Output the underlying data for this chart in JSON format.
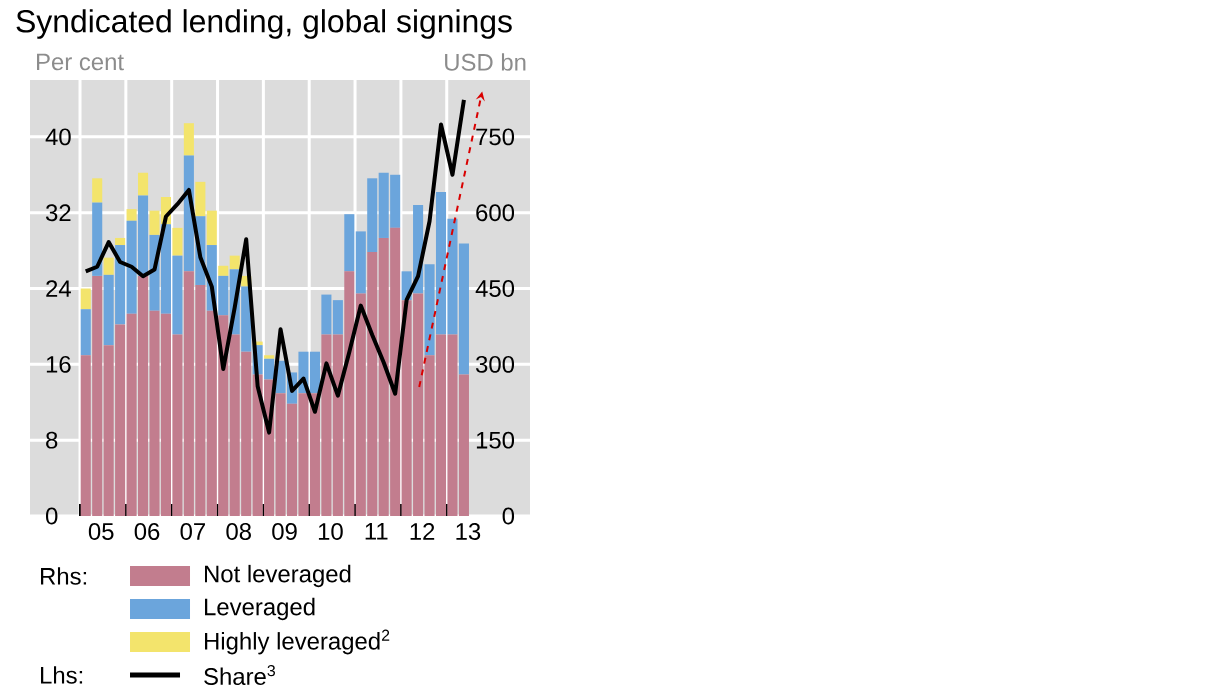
{
  "chart_data": {
    "type": "bar",
    "title": "Syndicated lending, global signings",
    "ylabel": "Per cent",
    "y2label": "USD bn",
    "categories": [
      null,
      "05",
      null,
      null,
      null,
      "06",
      null,
      null,
      null,
      "07",
      null,
      null,
      null,
      "08",
      null,
      null,
      null,
      "09",
      null,
      null,
      null,
      "10",
      null,
      null,
      null,
      "11",
      null,
      null,
      null,
      "12",
      null,
      null,
      null,
      "13"
    ],
    "stacked": true,
    "grid": true,
    "legend": "bottom",
    "ylim": [
      0,
      46
    ],
    "yticks": [
      0,
      8,
      16,
      24,
      32,
      40
    ],
    "y2lim": [
      0,
      862.5
    ],
    "y2ticks": [
      0,
      150,
      300,
      450,
      600,
      750
    ],
    "annotations": [
      "Rhs:",
      "Lhs:"
    ],
    "series": [
      {
        "name": "Not leveraged",
        "color": "#c27d8e",
        "axis": "y2",
        "values": [
          318,
          475,
          338,
          379,
          400,
          475,
          406,
          400,
          359,
          484,
          457,
          406,
          397,
          359,
          325,
          280,
          270,
          243,
          222,
          243,
          243,
          359,
          359,
          484,
          440,
          522,
          550,
          570,
          427,
          440,
          318,
          359,
          359,
          280
        ]
      },
      {
        "name": "Leveraged",
        "color": "#6ba5dc",
        "axis": "y2",
        "values": [
          91,
          145,
          139,
          157,
          184,
          159,
          150,
          177,
          156,
          229,
          136,
          130,
          78,
          129,
          129,
          58,
          41,
          64,
          62,
          82,
          82,
          79,
          68,
          113,
          123,
          146,
          129,
          105,
          57,
          175,
          180,
          282,
          229,
          259
        ]
      },
      {
        "name": "Highly leveraged$^{2}$",
        "color": "#f3e46c",
        "axis": "y2",
        "values": [
          41,
          48,
          34,
          14,
          23,
          45,
          48,
          54,
          55,
          64,
          68,
          68,
          20,
          27,
          21,
          7,
          7,
          null,
          null,
          null,
          null,
          null,
          null,
          null,
          null,
          null,
          null,
          null,
          null,
          null,
          null,
          null,
          null,
          null
        ]
      },
      {
        "name": "Share$^{3}$",
        "type": "line",
        "color": "#000000",
        "axis": "y",
        "values": [
          25.8,
          26.3,
          28.9,
          26.8,
          26.3,
          25.3,
          26.0,
          31.6,
          32.9,
          34.4,
          27.3,
          24.2,
          15.5,
          22.0,
          29.2,
          13.7,
          8.8,
          19.7,
          13.2,
          14.5,
          11.0,
          16.1,
          12.7,
          17.3,
          22.2,
          19.1,
          16.2,
          12.9,
          22.8,
          25.3,
          31.1,
          41.3,
          36.0,
          43.9
        ]
      }
    ]
  }
}
